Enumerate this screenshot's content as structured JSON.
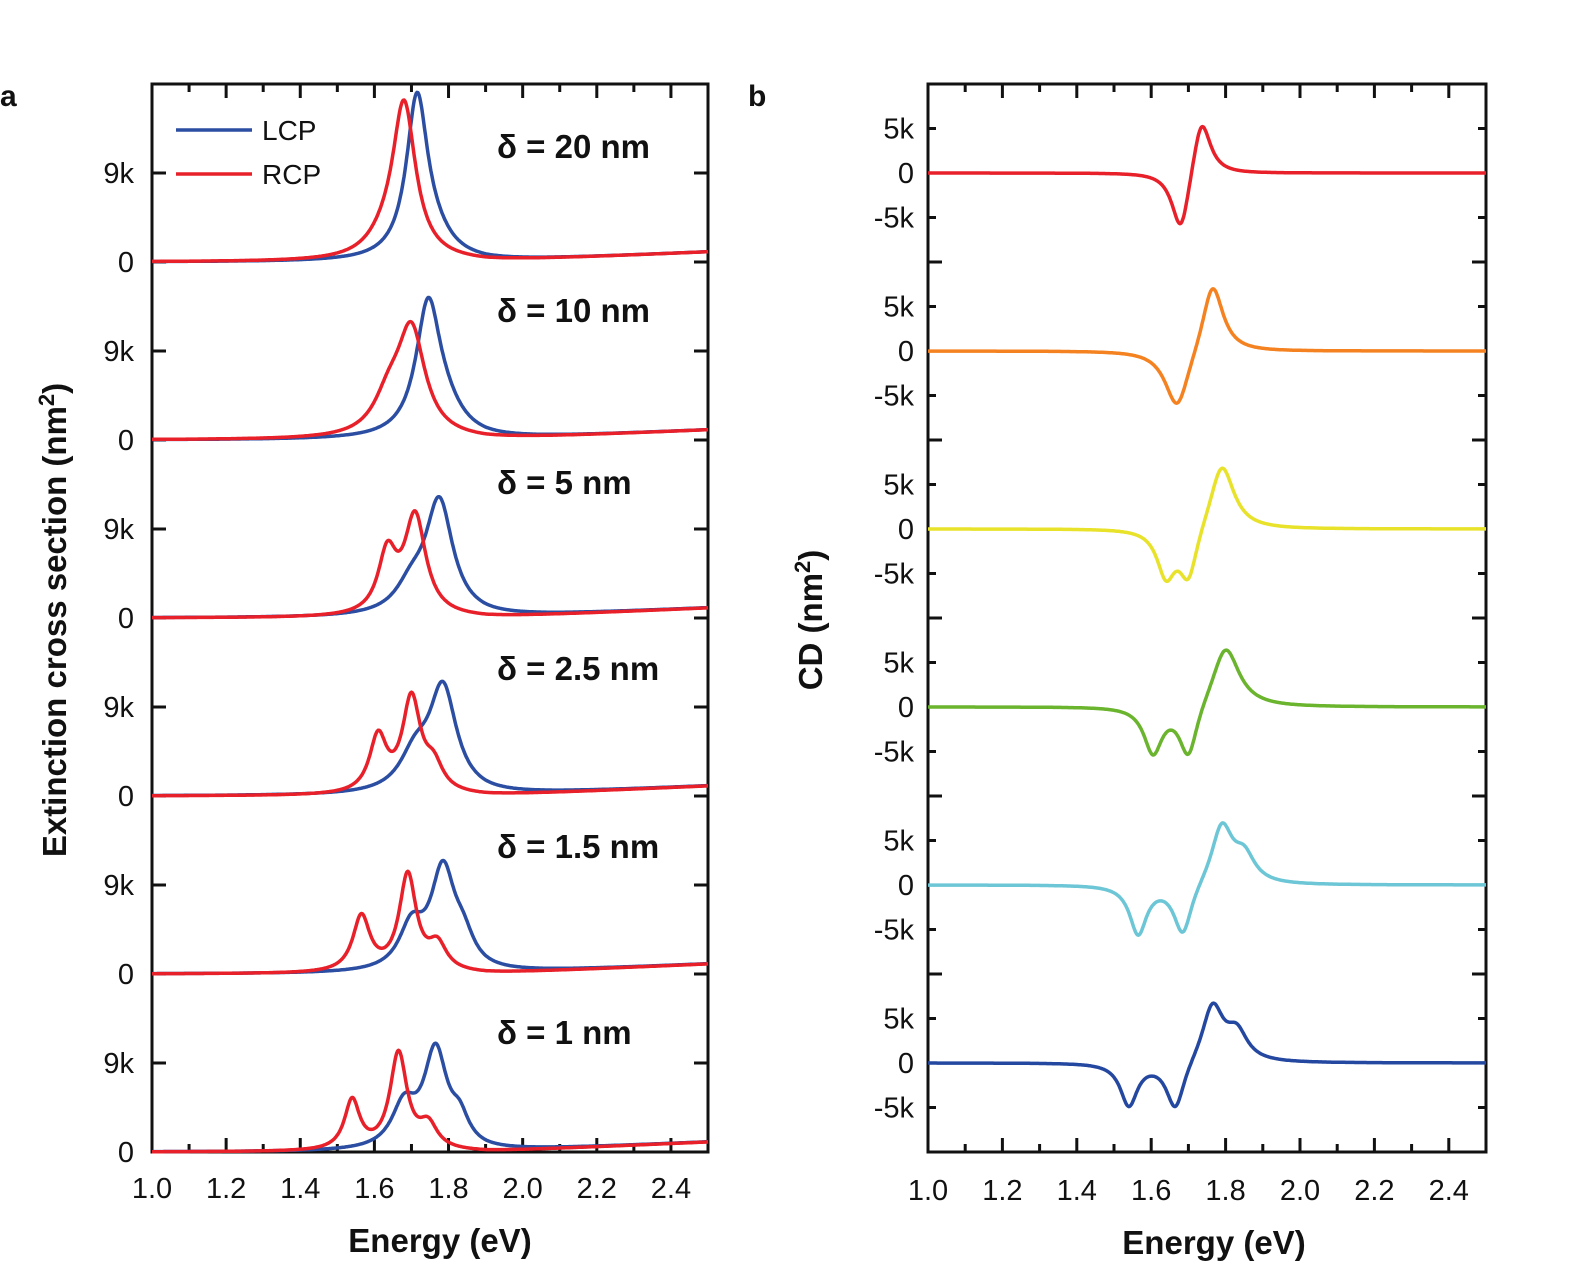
{
  "chart_data": [
    {
      "panel": "a",
      "type": "line",
      "xlabel": "Energy (eV)",
      "ylabel": "Extinction cross section (nm",
      "ylabel_sup": "2",
      "ylabel_close": ")",
      "xlim": [
        1.0,
        2.5
      ],
      "xticks": [
        1.0,
        1.2,
        1.4,
        1.6,
        1.8,
        2.0,
        2.2,
        2.4
      ],
      "xtick_labels": [
        "1.0",
        "1.2",
        "1.4",
        "1.6",
        "1.8",
        "2.0",
        "2.2",
        "2.4"
      ],
      "ytick_labels": [
        "0",
        "9k"
      ],
      "offset_per_panel": 18000,
      "legend": [
        {
          "name": "LCP",
          "color": "#2b4ea2"
        },
        {
          "name": "RCP",
          "color": "#e8202a"
        }
      ],
      "panels": [
        {
          "label": "δ = 20 nm",
          "LCP": {
            "base": 0,
            "peaks": [
              {
                "e": 1.715,
                "a": 16000,
                "w": 0.035
              },
              {
                "e": 1.76,
                "a": 1800,
                "w": 0.06
              }
            ],
            "tail": 1000
          },
          "RCP": {
            "base": 0,
            "peaks": [
              {
                "e": 1.68,
                "a": 15500,
                "w": 0.038
              },
              {
                "e": 1.63,
                "a": 1500,
                "w": 0.06
              }
            ],
            "tail": 1000
          }
        },
        {
          "label": "δ = 10 nm",
          "LCP": {
            "base": 0,
            "peaks": [
              {
                "e": 1.745,
                "a": 13000,
                "w": 0.04
              },
              {
                "e": 1.79,
                "a": 2200,
                "w": 0.06
              }
            ],
            "tail": 1000
          },
          "RCP": {
            "base": 0,
            "peaks": [
              {
                "e": 1.7,
                "a": 10500,
                "w": 0.045
              },
              {
                "e": 1.64,
                "a": 3500,
                "w": 0.05
              }
            ],
            "tail": 1000
          }
        },
        {
          "label": "δ = 5 nm",
          "LCP": {
            "base": 0,
            "peaks": [
              {
                "e": 1.775,
                "a": 11500,
                "w": 0.045
              },
              {
                "e": 1.7,
                "a": 2500,
                "w": 0.05
              }
            ],
            "tail": 1000
          },
          "RCP": {
            "base": 0,
            "peaks": [
              {
                "e": 1.71,
                "a": 10000,
                "w": 0.035
              },
              {
                "e": 1.635,
                "a": 6000,
                "w": 0.03
              }
            ],
            "tail": 1000
          }
        },
        {
          "label": "δ = 2.5 nm",
          "LCP": {
            "base": 0,
            "peaks": [
              {
                "e": 1.785,
                "a": 10500,
                "w": 0.045
              },
              {
                "e": 1.71,
                "a": 3500,
                "w": 0.05
              }
            ],
            "tail": 1000
          },
          "RCP": {
            "base": 0,
            "peaks": [
              {
                "e": 1.7,
                "a": 9500,
                "w": 0.03
              },
              {
                "e": 1.61,
                "a": 5600,
                "w": 0.028
              },
              {
                "e": 1.76,
                "a": 2500,
                "w": 0.03
              }
            ],
            "tail": 1000
          }
        },
        {
          "label": "δ = 1.5 nm",
          "LCP": {
            "base": 0,
            "peaks": [
              {
                "e": 1.785,
                "a": 10000,
                "w": 0.04
              },
              {
                "e": 1.7,
                "a": 4200,
                "w": 0.04
              },
              {
                "e": 1.84,
                "a": 2500,
                "w": 0.035
              }
            ],
            "tail": 1000
          },
          "RCP": {
            "base": 0,
            "peaks": [
              {
                "e": 1.69,
                "a": 9800,
                "w": 0.028
              },
              {
                "e": 1.565,
                "a": 5600,
                "w": 0.028
              },
              {
                "e": 1.77,
                "a": 2600,
                "w": 0.03
              }
            ],
            "tail": 1000
          }
        },
        {
          "label": "δ = 1 nm",
          "LCP": {
            "base": 0,
            "peaks": [
              {
                "e": 1.765,
                "a": 9800,
                "w": 0.038
              },
              {
                "e": 1.68,
                "a": 4200,
                "w": 0.04
              },
              {
                "e": 1.83,
                "a": 2500,
                "w": 0.03
              }
            ],
            "tail": 1000
          },
          "RCP": {
            "base": 0,
            "peaks": [
              {
                "e": 1.665,
                "a": 9800,
                "w": 0.028
              },
              {
                "e": 1.54,
                "a": 5000,
                "w": 0.025
              },
              {
                "e": 1.745,
                "a": 2400,
                "w": 0.03
              }
            ],
            "tail": 1000
          }
        }
      ],
      "annotations": [
        "δ = 20 nm",
        "δ = 10 nm",
        "δ = 5 nm",
        "δ = 2.5 nm",
        "δ = 1.5 nm",
        "δ = 1 nm"
      ]
    },
    {
      "panel": "b",
      "type": "line",
      "xlabel": "Energy (eV)",
      "ylabel": "CD (nm",
      "ylabel_sup": "2",
      "ylabel_close": ")",
      "xlim": [
        1.0,
        2.5
      ],
      "xticks": [
        1.0,
        1.2,
        1.4,
        1.6,
        1.8,
        2.0,
        2.2,
        2.4
      ],
      "xtick_labels": [
        "1.0",
        "1.2",
        "1.4",
        "1.6",
        "1.8",
        "2.0",
        "2.2",
        "2.4"
      ],
      "ytick_labels": [
        "5k",
        "0",
        "-5k"
      ],
      "panel_range": [
        -10000,
        10000
      ],
      "series": [
        {
          "delta": "20 nm",
          "color": "#e8202a",
          "peaks": [
            {
              "e": 1.68,
              "a": -7200,
              "w": 0.03
            },
            {
              "e": 1.735,
              "a": 6800,
              "w": 0.03
            }
          ]
        },
        {
          "delta": "10 nm",
          "color": "#f58220",
          "peaks": [
            {
              "e": 1.67,
              "a": -6800,
              "w": 0.04
            },
            {
              "e": 1.765,
              "a": 8000,
              "w": 0.035
            }
          ]
        },
        {
          "delta": "5 nm",
          "color": "#e8e22a",
          "peaks": [
            {
              "e": 1.64,
              "a": -5200,
              "w": 0.03
            },
            {
              "e": 1.7,
              "a": -5800,
              "w": 0.03
            },
            {
              "e": 1.79,
              "a": 7600,
              "w": 0.04
            }
          ]
        },
        {
          "delta": "2.5 nm",
          "color": "#6ab42e",
          "peaks": [
            {
              "e": 1.605,
              "a": -5200,
              "w": 0.03
            },
            {
              "e": 1.7,
              "a": -6000,
              "w": 0.03
            },
            {
              "e": 1.8,
              "a": 7000,
              "w": 0.045
            }
          ]
        },
        {
          "delta": "1.5 nm",
          "color": "#6cc6d6",
          "peaks": [
            {
              "e": 1.565,
              "a": -5500,
              "w": 0.028
            },
            {
              "e": 1.685,
              "a": -5800,
              "w": 0.03
            },
            {
              "e": 1.79,
              "a": 6700,
              "w": 0.035
            },
            {
              "e": 1.85,
              "a": 3000,
              "w": 0.035
            }
          ]
        },
        {
          "delta": "1 nm",
          "color": "#2447a0",
          "peaks": [
            {
              "e": 1.54,
              "a": -4800,
              "w": 0.028
            },
            {
              "e": 1.665,
              "a": -5500,
              "w": 0.03
            },
            {
              "e": 1.765,
              "a": 6500,
              "w": 0.035
            },
            {
              "e": 1.83,
              "a": 3200,
              "w": 0.035
            }
          ]
        }
      ]
    }
  ]
}
